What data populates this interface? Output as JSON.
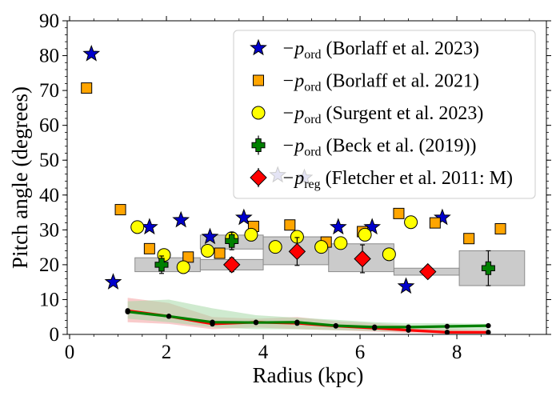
{
  "chart_data": {
    "type": "scatter",
    "xlabel": "Radius (kpc)",
    "ylabel": "Pitch angle (degrees)",
    "xlim": [
      -0.05,
      9.85
    ],
    "ylim": [
      0,
      90
    ],
    "x_ticks": [
      0,
      2,
      4,
      6,
      8
    ],
    "y_ticks": [
      0,
      10,
      20,
      30,
      40,
      50,
      60,
      70,
      80,
      90
    ],
    "grid": false,
    "legend_position": "top-right",
    "legend": [
      {
        "marker": "star",
        "color": "#0000cc",
        "text": "−p",
        "sub": "ord",
        "rest": " (Borlaff et al. 2023)"
      },
      {
        "marker": "square",
        "color": "#ffa500",
        "text": "−p",
        "sub": "ord",
        "rest": " (Borlaff et al. 2021)"
      },
      {
        "marker": "circle",
        "color": "#ffff00",
        "text": "−p",
        "sub": "ord",
        "rest": " (Surgent et al. 2023)"
      },
      {
        "marker": "plus",
        "color": "#008000",
        "text": "−p",
        "sub": "ord",
        "rest": " (Beck et al. (2019))"
      },
      {
        "marker": "diamond",
        "color": "#ff0000",
        "text": "−p",
        "sub": "reg",
        "rest": " (Fletcher et al. 2011: M)"
      }
    ],
    "series": [
      {
        "marker": "star",
        "color": "#0000cc",
        "points": [
          [
            0.45,
            80.5
          ],
          [
            0.9,
            15.0
          ],
          [
            1.65,
            30.8
          ],
          [
            2.3,
            32.8
          ],
          [
            2.9,
            28.0
          ],
          [
            3.6,
            33.5
          ],
          [
            5.55,
            30.8
          ],
          [
            6.25,
            30.8
          ],
          [
            6.95,
            13.8
          ],
          [
            7.7,
            33.5
          ]
        ]
      },
      {
        "marker": "star",
        "color": "#7777cc",
        "points": [
          [
            4.3,
            45.7
          ],
          [
            4.85,
            45.0
          ]
        ]
      },
      {
        "marker": "square",
        "color": "#ffa500",
        "points": [
          [
            0.35,
            70.7
          ],
          [
            1.05,
            35.8
          ],
          [
            1.65,
            24.6
          ],
          [
            2.45,
            22.2
          ],
          [
            3.1,
            23.3
          ],
          [
            3.8,
            31.0
          ],
          [
            4.55,
            31.4
          ],
          [
            5.3,
            26.5
          ],
          [
            6.05,
            29.5
          ],
          [
            6.8,
            34.7
          ],
          [
            7.55,
            32.0
          ],
          [
            8.25,
            27.5
          ],
          [
            8.9,
            30.3
          ]
        ]
      },
      {
        "marker": "circle",
        "color": "#ffff00",
        "points": [
          [
            1.4,
            30.8
          ],
          [
            1.95,
            22.8
          ],
          [
            2.35,
            19.3
          ],
          [
            2.85,
            24.0
          ],
          [
            3.35,
            27.6
          ],
          [
            3.75,
            28.6
          ],
          [
            4.25,
            25.1
          ],
          [
            4.7,
            28.0
          ],
          [
            5.2,
            25.1
          ],
          [
            5.6,
            26.2
          ],
          [
            6.1,
            28.6
          ],
          [
            6.6,
            23.0
          ],
          [
            7.05,
            32.2
          ]
        ]
      },
      {
        "marker": "plus",
        "color": "#008000",
        "points": [
          [
            1.9,
            20.0,
            2.5
          ],
          [
            3.35,
            26.8,
            2.5
          ],
          [
            8.65,
            19.0,
            5.0
          ]
        ]
      },
      {
        "marker": "diamond",
        "color": "#ff0000",
        "points": [
          [
            3.35,
            20.0,
            2.0
          ],
          [
            4.7,
            23.8,
            4.0
          ],
          [
            6.05,
            21.7,
            4.0
          ],
          [
            7.4,
            18.0,
            1.0
          ]
        ]
      }
    ],
    "boxes": [
      {
        "x0": 1.35,
        "x1": 2.7,
        "y0": 18.0,
        "y1": 22.0
      },
      {
        "x0": 2.7,
        "x1": 4.0,
        "y0": 18.5,
        "y1": 21.5
      },
      {
        "x0": 2.7,
        "x1": 4.0,
        "y0": 24.5,
        "y1": 28.5
      },
      {
        "x0": 4.0,
        "x1": 5.35,
        "y0": 20.0,
        "y1": 28.0
      },
      {
        "x0": 5.35,
        "x1": 6.7,
        "y0": 18.0,
        "y1": 26.0
      },
      {
        "x0": 6.7,
        "x1": 8.05,
        "y0": 17.0,
        "y1": 19.0
      },
      {
        "x0": 8.05,
        "x1": 9.4,
        "y0": 14.0,
        "y1": 24.0
      }
    ],
    "lines": [
      {
        "color": "#ff0000",
        "points": [
          [
            1.2,
            6.8
          ],
          [
            2.05,
            5.2
          ],
          [
            2.95,
            3.0
          ],
          [
            3.85,
            3.5
          ],
          [
            4.7,
            3.2
          ],
          [
            5.5,
            2.4
          ],
          [
            6.3,
            1.8
          ],
          [
            7.0,
            1.2
          ],
          [
            7.8,
            0.6
          ],
          [
            8.65,
            0.6
          ]
        ],
        "band_upper": [
          10.5,
          9.0,
          5.0,
          4.5,
          5.0,
          3.8,
          3.2,
          2.6,
          1.6,
          1.2
        ],
        "band_lower": [
          3.5,
          3.0,
          1.5,
          2.0,
          1.5,
          1.2,
          0.8,
          0.4,
          0.2,
          0.2
        ],
        "band_color": "#f4a0a0"
      },
      {
        "color": "#008000",
        "points": [
          [
            1.2,
            6.5
          ],
          [
            2.05,
            5.2
          ],
          [
            2.95,
            3.5
          ],
          [
            3.85,
            3.4
          ],
          [
            4.7,
            3.5
          ],
          [
            5.5,
            2.5
          ],
          [
            6.3,
            2.1
          ],
          [
            7.0,
            2.1
          ],
          [
            7.8,
            2.3
          ],
          [
            8.65,
            2.5
          ]
        ],
        "band_upper": [
          9.5,
          10.0,
          7.5,
          5.5,
          4.8,
          4.2,
          3.5,
          3.2,
          3.2,
          3.0
        ],
        "band_lower": [
          4.5,
          3.5,
          2.0,
          1.5,
          1.5,
          1.2,
          1.0,
          0.8,
          1.0,
          1.2
        ],
        "band_color": "#a8d8a8"
      }
    ]
  }
}
